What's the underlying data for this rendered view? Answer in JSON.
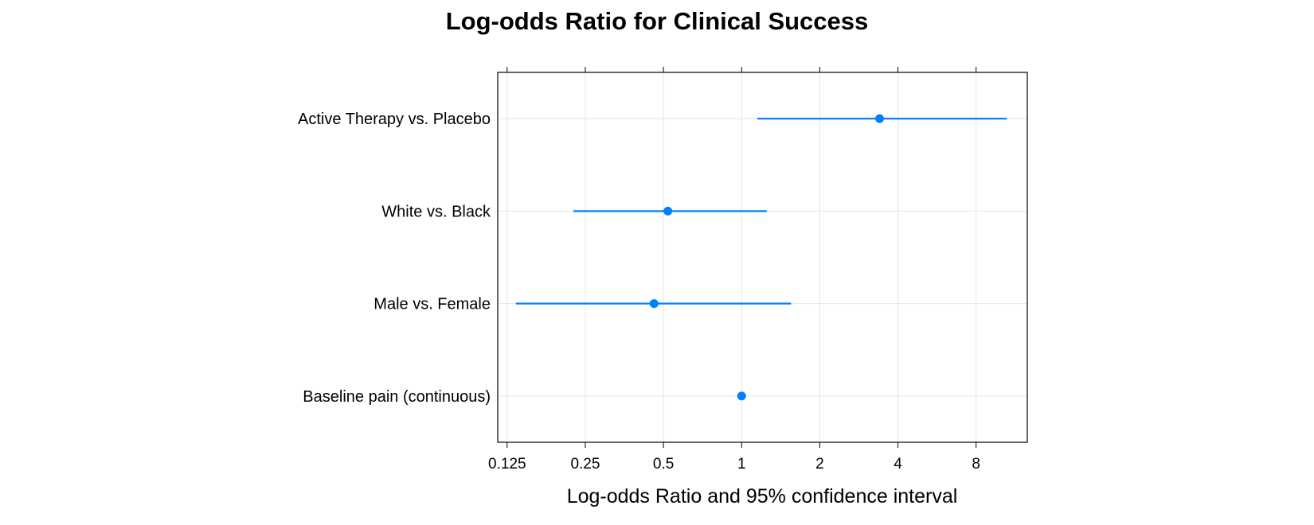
{
  "chart_data": {
    "type": "dotplot",
    "title": "Log-odds Ratio for Clinical Success",
    "xlabel": "Log-odds Ratio and 95% confidence interval",
    "x_scale": "log2",
    "xlim": [
      0.115,
      12.6
    ],
    "grid": true,
    "x_ticks": [
      {
        "value": 0.125,
        "label": "0.125"
      },
      {
        "value": 0.25,
        "label": "0.25"
      },
      {
        "value": 0.5,
        "label": "0.5"
      },
      {
        "value": 1,
        "label": "1"
      },
      {
        "value": 2,
        "label": "2"
      },
      {
        "value": 4,
        "label": "4"
      },
      {
        "value": 8,
        "label": "8"
      }
    ],
    "series": [
      {
        "name": "Active Therapy vs. Placebo",
        "estimate": 3.4,
        "lower": 1.15,
        "upper": 10.5
      },
      {
        "name": "White vs. Black",
        "estimate": 0.52,
        "lower": 0.225,
        "upper": 1.25
      },
      {
        "name": "Male vs. Female",
        "estimate": 0.46,
        "lower": 0.135,
        "upper": 1.55
      },
      {
        "name": "Baseline pain (continuous)",
        "estimate": 1.0,
        "lower": 0.97,
        "upper": 1.04
      }
    ],
    "colors": {
      "point": "#0080ff",
      "line": "#0080ff",
      "grid": "#e6e6e6",
      "axis": "#000000"
    }
  }
}
